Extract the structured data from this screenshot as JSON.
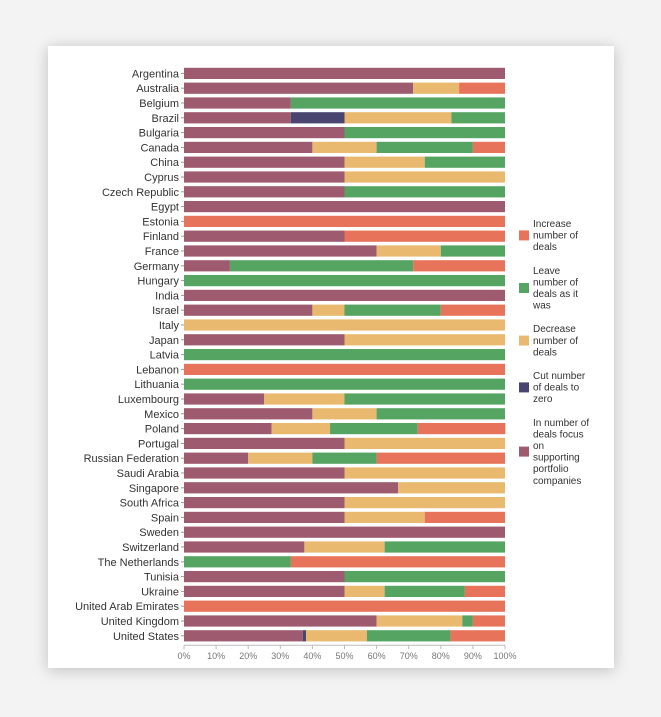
{
  "chart_data": {
    "type": "bar",
    "orientation": "horizontal",
    "stacked": "percent",
    "categories": [
      "Argentina",
      "Australia",
      "Belgium",
      "Brazil",
      "Bulgaria",
      "Canada",
      "China",
      "Cyprus",
      "Czech Republic",
      "Egypt",
      "Estonia",
      "Finland",
      "France",
      "Germany",
      "Hungary",
      "India",
      "Israel",
      "Italy",
      "Japan",
      "Latvia",
      "Lebanon",
      "Lithuania",
      "Luxembourg",
      "Mexico",
      "Poland",
      "Portugal",
      "Russian Federation",
      "Saudi Arabia",
      "Singapore",
      "South Africa",
      "Spain",
      "Sweden",
      "Switzerland",
      "The Netherlands",
      "Tunisia",
      "Ukraine",
      "United Arab Emirates",
      "United Kingdom",
      "United States"
    ],
    "series": [
      {
        "name": "In number of deals focus on supporting portfolio companies",
        "color": "#9e5a6e",
        "values": [
          100,
          71.4,
          33.3,
          33.3,
          50,
          40,
          50,
          50,
          50,
          100,
          0,
          50,
          60,
          14.3,
          0,
          100,
          40,
          0,
          50,
          0,
          0,
          0,
          25,
          40,
          27.3,
          50,
          20,
          50,
          66.7,
          50,
          50,
          100,
          37.5,
          0,
          50,
          50,
          0,
          60,
          37
        ]
      },
      {
        "name": "Cut number of deals to zero",
        "color": "#4a4470",
        "values": [
          0,
          0,
          0,
          16.7,
          0,
          0,
          0,
          0,
          0,
          0,
          0,
          0,
          0,
          0,
          0,
          0,
          0,
          0,
          0,
          0,
          0,
          0,
          0,
          0,
          0,
          0,
          0,
          0,
          0,
          0,
          0,
          0,
          0,
          0,
          0,
          0,
          0,
          0,
          1
        ]
      },
      {
        "name": "Decrease number of deals",
        "color": "#e8b96f",
        "values": [
          0,
          14.3,
          0,
          33.3,
          0,
          20,
          25,
          50,
          0,
          0,
          0,
          0,
          20,
          0,
          0,
          0,
          10,
          100,
          50,
          0,
          0,
          0,
          25,
          20,
          18.2,
          50,
          20,
          50,
          33.3,
          50,
          25,
          0,
          25,
          0,
          0,
          12.5,
          0,
          26.7,
          19
        ]
      },
      {
        "name": "Leave number of deals as it was",
        "color": "#55a462",
        "values": [
          0,
          0,
          66.7,
          16.7,
          50,
          30,
          25,
          0,
          50,
          0,
          0,
          0,
          20,
          57.1,
          100,
          0,
          30,
          0,
          0,
          100,
          0,
          100,
          50,
          40,
          27.3,
          0,
          20,
          0,
          0,
          0,
          0,
          0,
          37.5,
          33.3,
          50,
          25,
          0,
          3.3,
          26
        ]
      },
      {
        "name": "Increase number of deals",
        "color": "#e6735a",
        "values": [
          0,
          14.3,
          0,
          0,
          0,
          10,
          0,
          0,
          0,
          0,
          100,
          50,
          0,
          28.6,
          0,
          0,
          20,
          0,
          0,
          0,
          100,
          0,
          0,
          0,
          27.3,
          0,
          40,
          0,
          0,
          0,
          25,
          0,
          0,
          66.7,
          0,
          12.5,
          100,
          10,
          17
        ]
      }
    ],
    "legend_order": [
      "Increase number of deals",
      "Leave number of deals as it was",
      "Decrease number of deals",
      "Cut number of deals to zero",
      "In number of deals focus on supporting portfolio companies"
    ],
    "legend_lines": [
      [
        "Increase",
        "number of",
        "deals"
      ],
      [
        "Leave",
        "number of",
        "deals as it",
        "was"
      ],
      [
        "Decrease",
        "number of",
        "deals"
      ],
      [
        "Cut number",
        "of deals to",
        "zero"
      ],
      [
        "In number of",
        "deals focus",
        "on",
        "supporting",
        "portfolio",
        "companies"
      ]
    ],
    "x_ticks": [
      "0%",
      "10%",
      "20%",
      "30%",
      "40%",
      "50%",
      "60%",
      "70%",
      "80%",
      "90%",
      "100%"
    ],
    "xlim": [
      0,
      100
    ],
    "legend_position": "right"
  }
}
